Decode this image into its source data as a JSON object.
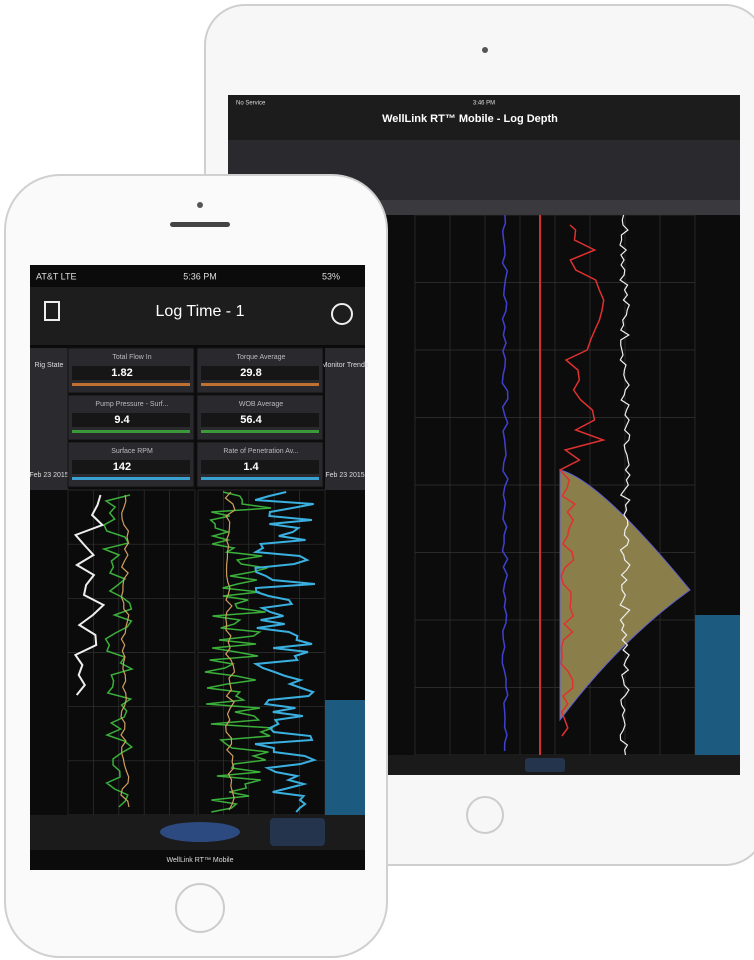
{
  "ipad": {
    "status": {
      "carrier": "No Service",
      "time": "3:46 PM"
    },
    "title": "WellLink RT™ Mobile - Log Depth"
  },
  "phone": {
    "status": {
      "carrier": "AT&T LTE",
      "time": "5:36 PM",
      "battery": "53%"
    },
    "title": "Log Time - 1",
    "side_left": "Rig State",
    "side_right": "Monitor Trends",
    "gauges": [
      {
        "name": "Total Flow In",
        "value": "1.82"
      },
      {
        "name": "Torque Average",
        "value": "29.8"
      },
      {
        "name": "Pump Pressure - Surf...",
        "value": "9.4"
      },
      {
        "name": "WOB Average",
        "value": "56.4"
      },
      {
        "name": "Surface RPM",
        "value": "142"
      },
      {
        "name": "Rate of Penetration Av...",
        "value": "1.4"
      }
    ],
    "date": "Feb 23 2015",
    "footer": "WellLink RT™ Mobile"
  }
}
